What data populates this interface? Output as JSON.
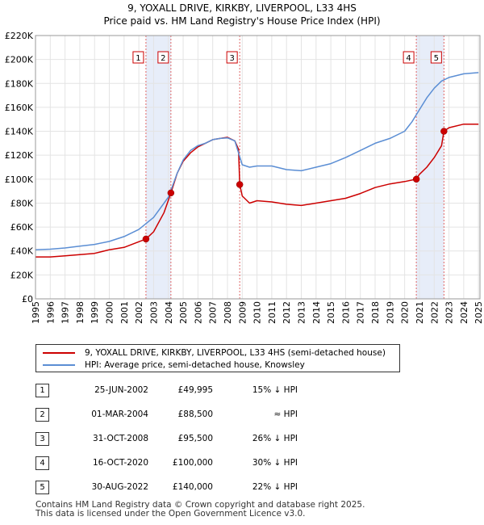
{
  "chart_data": {
    "type": "line",
    "title_line1": "9, YOXALL DRIVE, KIRKBY, LIVERPOOL, L33 4HS",
    "title_line2": "Price paid vs. HM Land Registry's House Price Index (HPI)",
    "ylim": [
      0,
      220000
    ],
    "xlim": [
      1995,
      2025.1
    ],
    "y_ticks": [
      {
        "value": 0,
        "label": "£0"
      },
      {
        "value": 20000,
        "label": "£20K"
      },
      {
        "value": 40000,
        "label": "£40K"
      },
      {
        "value": 60000,
        "label": "£60K"
      },
      {
        "value": 80000,
        "label": "£80K"
      },
      {
        "value": 100000,
        "label": "£100K"
      },
      {
        "value": 120000,
        "label": "£120K"
      },
      {
        "value": 140000,
        "label": "£140K"
      },
      {
        "value": 160000,
        "label": "£160K"
      },
      {
        "value": 180000,
        "label": "£180K"
      },
      {
        "value": 200000,
        "label": "£200K"
      },
      {
        "value": 220000,
        "label": "£220K"
      }
    ],
    "x_ticks": [
      "1995",
      "1996",
      "1997",
      "1998",
      "1999",
      "2000",
      "2001",
      "2002",
      "2003",
      "2004",
      "2005",
      "2006",
      "2007",
      "2008",
      "2009",
      "2010",
      "2011",
      "2012",
      "2013",
      "2014",
      "2015",
      "2016",
      "2017",
      "2018",
      "2019",
      "2020",
      "2021",
      "2022",
      "2023",
      "2024",
      "2025"
    ],
    "series": [
      {
        "name": "9, YOXALL DRIVE, KIRKBY, LIVERPOOL, L33 4HS (semi-detached house)",
        "color": "#cc0000",
        "points": [
          [
            1995,
            35000
          ],
          [
            1996,
            35000
          ],
          [
            1997,
            36000
          ],
          [
            1998,
            37000
          ],
          [
            1999,
            38000
          ],
          [
            2000,
            41000
          ],
          [
            2001,
            43000
          ],
          [
            2002.48,
            49995
          ],
          [
            2003,
            56000
          ],
          [
            2003.7,
            72000
          ],
          [
            2004.17,
            88500
          ],
          [
            2004.6,
            105000
          ],
          [
            2005,
            115000
          ],
          [
            2005.5,
            122000
          ],
          [
            2006,
            127000
          ],
          [
            2006.5,
            130000
          ],
          [
            2007,
            133000
          ],
          [
            2007.5,
            134000
          ],
          [
            2008,
            135000
          ],
          [
            2008.5,
            132000
          ],
          [
            2008.75,
            125000
          ],
          [
            2008.83,
            95500
          ],
          [
            2009,
            86000
          ],
          [
            2009.5,
            80000
          ],
          [
            2010,
            82000
          ],
          [
            2011,
            81000
          ],
          [
            2012,
            79000
          ],
          [
            2013,
            78000
          ],
          [
            2014,
            80000
          ],
          [
            2015,
            82000
          ],
          [
            2016,
            84000
          ],
          [
            2017,
            88000
          ],
          [
            2018,
            93000
          ],
          [
            2019,
            96000
          ],
          [
            2020,
            98000
          ],
          [
            2020.79,
            100000
          ],
          [
            2021,
            104000
          ],
          [
            2021.5,
            110000
          ],
          [
            2022,
            118000
          ],
          [
            2022.5,
            128000
          ],
          [
            2022.66,
            140000
          ],
          [
            2023,
            143000
          ],
          [
            2024,
            146000
          ],
          [
            2025,
            146000
          ]
        ]
      },
      {
        "name": "HPI: Average price, semi-detached house, Knowsley",
        "color": "#5b8ed4",
        "points": [
          [
            1995,
            41000
          ],
          [
            1996,
            41500
          ],
          [
            1997,
            42500
          ],
          [
            1998,
            44000
          ],
          [
            1999,
            45500
          ],
          [
            2000,
            48000
          ],
          [
            2001,
            52000
          ],
          [
            2002,
            58000
          ],
          [
            2003,
            68000
          ],
          [
            2004,
            85000
          ],
          [
            2004.6,
            105000
          ],
          [
            2005,
            116000
          ],
          [
            2005.5,
            124000
          ],
          [
            2006,
            128000
          ],
          [
            2006.5,
            130000
          ],
          [
            2007,
            133000
          ],
          [
            2007.5,
            134000
          ],
          [
            2008,
            134500
          ],
          [
            2008.5,
            132000
          ],
          [
            2009,
            112000
          ],
          [
            2009.5,
            110000
          ],
          [
            2010,
            111000
          ],
          [
            2011,
            111000
          ],
          [
            2012,
            108000
          ],
          [
            2013,
            107000
          ],
          [
            2014,
            110000
          ],
          [
            2015,
            113000
          ],
          [
            2016,
            118000
          ],
          [
            2017,
            124000
          ],
          [
            2018,
            130000
          ],
          [
            2019,
            134000
          ],
          [
            2020,
            140000
          ],
          [
            2020.5,
            148000
          ],
          [
            2021,
            158000
          ],
          [
            2021.5,
            168000
          ],
          [
            2022,
            176000
          ],
          [
            2022.5,
            182000
          ],
          [
            2023,
            185000
          ],
          [
            2024,
            188000
          ],
          [
            2025,
            189000
          ]
        ]
      }
    ],
    "sales": [
      {
        "num": "1",
        "year": 2002.48,
        "price": 49995
      },
      {
        "num": "2",
        "year": 2004.17,
        "price": 88500
      },
      {
        "num": "3",
        "year": 2008.83,
        "price": 95500
      },
      {
        "num": "4",
        "year": 2020.79,
        "price": 100000
      },
      {
        "num": "5",
        "year": 2022.66,
        "price": 140000
      }
    ]
  },
  "legend": {
    "property": "9, YOXALL DRIVE, KIRKBY, LIVERPOOL, L33 4HS (semi-detached house)",
    "hpi": "HPI: Average price, semi-detached house, Knowsley",
    "property_color": "#cc0000",
    "hpi_color": "#5b8ed4"
  },
  "sales_table": [
    {
      "num": "1",
      "date": "25-JUN-2002",
      "price": "£49,995",
      "rel": "15% ↓ HPI"
    },
    {
      "num": "2",
      "date": "01-MAR-2004",
      "price": "£88,500",
      "rel": "≈ HPI"
    },
    {
      "num": "3",
      "date": "31-OCT-2008",
      "price": "£95,500",
      "rel": "26% ↓ HPI"
    },
    {
      "num": "4",
      "date": "16-OCT-2020",
      "price": "£100,000",
      "rel": "30% ↓ HPI"
    },
    {
      "num": "5",
      "date": "30-AUG-2022",
      "price": "£140,000",
      "rel": "22% ↓ HPI"
    }
  ],
  "footer": {
    "line1": "Contains HM Land Registry data © Crown copyright and database right 2025.",
    "line2": "This data is licensed under the Open Government Licence v3.0."
  }
}
